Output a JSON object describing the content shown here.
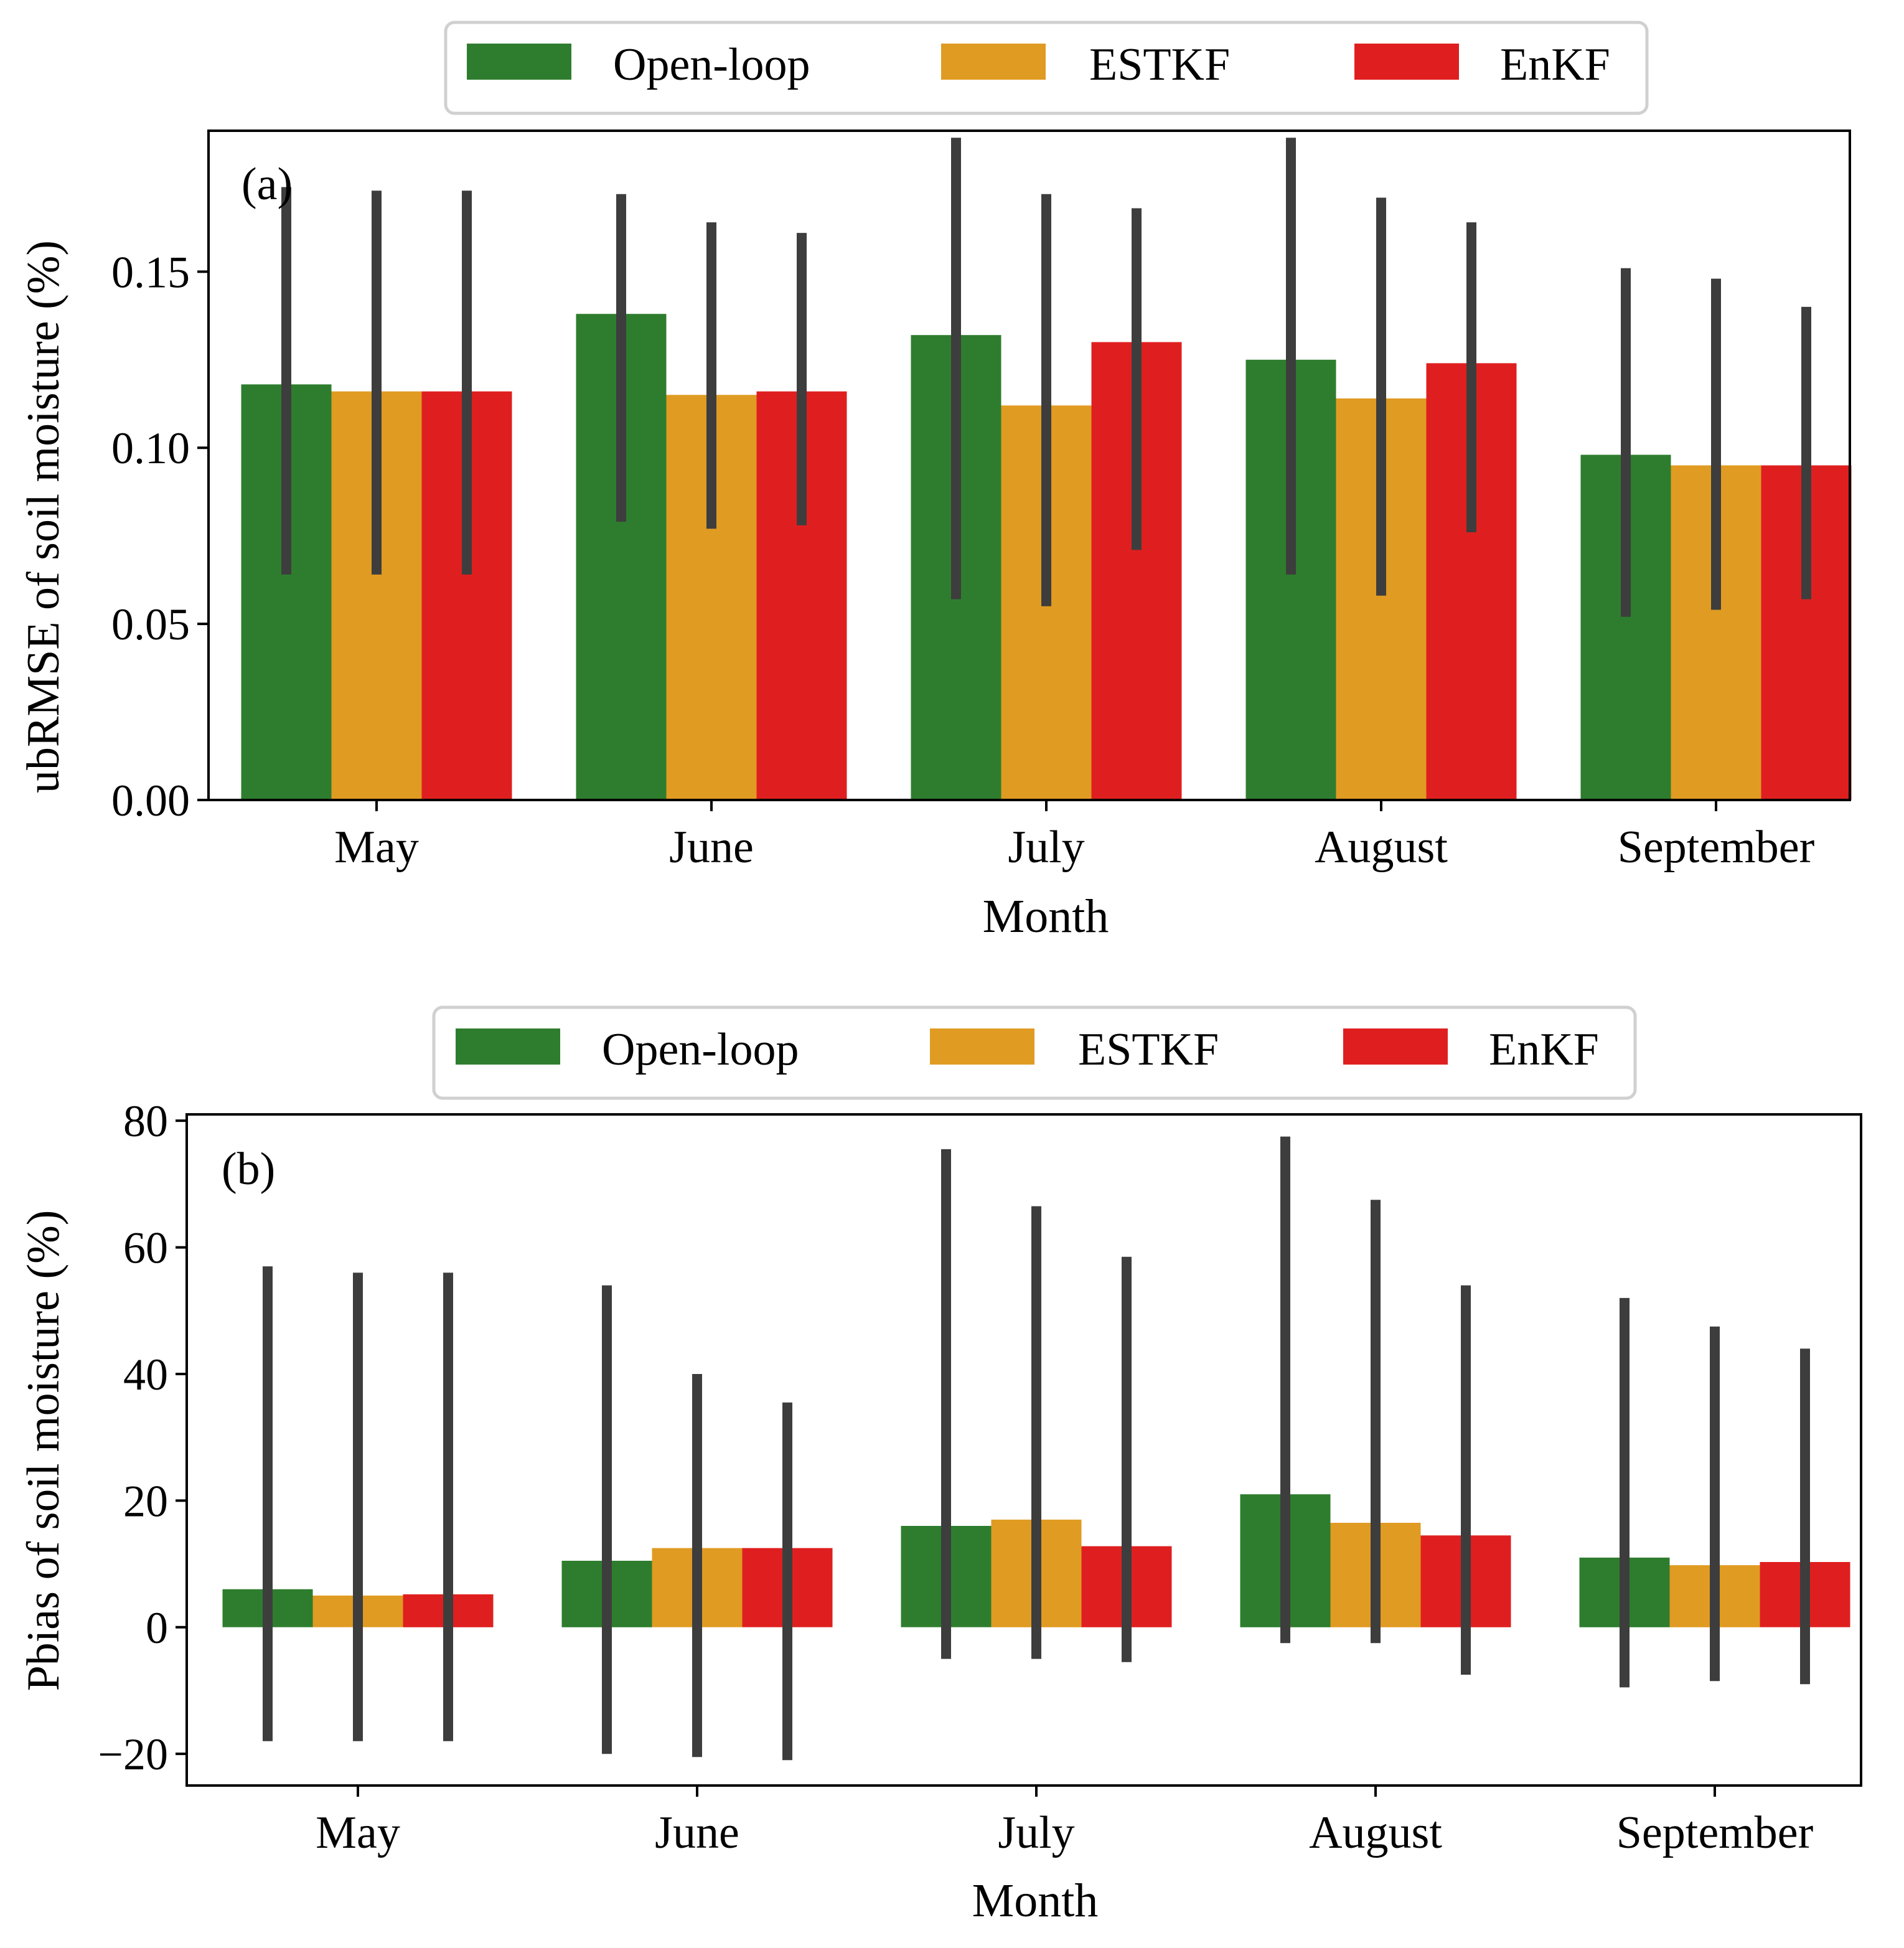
{
  "chart_data": [
    {
      "type": "bar",
      "panel_label": "(a)",
      "title": "",
      "xlabel": "Month",
      "ylabel": "ubRMSE of soil moisture (%)",
      "ylim": [
        0,
        0.19
      ],
      "yticks": [
        0.0,
        0.05,
        0.1,
        0.15
      ],
      "ytick_labels": [
        "0.00",
        "0.05",
        "0.10",
        "0.15"
      ],
      "categories": [
        "May",
        "June",
        "July",
        "August",
        "September"
      ],
      "grid": false,
      "legend": {
        "placement": "top-center-outside",
        "entries": [
          "Open-loop",
          "ESTKF",
          "EnKF"
        ]
      },
      "series": [
        {
          "name": "Open-loop",
          "color": "#2e7d2e",
          "values": [
            0.118,
            0.138,
            0.132,
            0.125,
            0.098
          ],
          "err_low": [
            0.064,
            0.079,
            0.057,
            0.064,
            0.052
          ],
          "err_high": [
            0.174,
            0.172,
            0.188,
            0.188,
            0.151
          ]
        },
        {
          "name": "ESTKF",
          "color": "#e09b22",
          "values": [
            0.116,
            0.115,
            0.112,
            0.114,
            0.095
          ],
          "err_low": [
            0.064,
            0.077,
            0.055,
            0.058,
            0.054
          ],
          "err_high": [
            0.173,
            0.164,
            0.172,
            0.171,
            0.148
          ]
        },
        {
          "name": "EnKF",
          "color": "#df1f1f",
          "values": [
            0.116,
            0.116,
            0.13,
            0.124,
            0.095
          ],
          "err_low": [
            0.064,
            0.078,
            0.071,
            0.076,
            0.057
          ],
          "err_high": [
            0.173,
            0.161,
            0.168,
            0.164,
            0.14
          ]
        }
      ]
    },
    {
      "type": "bar",
      "panel_label": "(b)",
      "title": "",
      "xlabel": "Month",
      "ylabel": "Pbias of soil moisture (%)",
      "ylim": [
        -25,
        81
      ],
      "yticks": [
        -20,
        0,
        20,
        40,
        60,
        80
      ],
      "ytick_labels": [
        "−20",
        "0",
        "20",
        "40",
        "60",
        "80"
      ],
      "categories": [
        "May",
        "June",
        "July",
        "August",
        "September"
      ],
      "grid": false,
      "legend": {
        "placement": "top-center-outside",
        "entries": [
          "Open-loop",
          "ESTKF",
          "EnKF"
        ]
      },
      "series": [
        {
          "name": "Open-loop",
          "color": "#2e7d2e",
          "values": [
            6.0,
            10.5,
            16.0,
            21.0,
            11.0
          ],
          "err_low": [
            -18.0,
            -20.0,
            -5.0,
            -2.5,
            -9.5
          ],
          "err_high": [
            57.0,
            54.0,
            75.5,
            77.5,
            52.0
          ]
        },
        {
          "name": "ESTKF",
          "color": "#e09b22",
          "values": [
            5.0,
            12.5,
            17.0,
            16.5,
            9.8
          ],
          "err_low": [
            -18.0,
            -20.5,
            -5.0,
            -2.5,
            -8.5
          ],
          "err_high": [
            56.0,
            40.0,
            66.5,
            67.5,
            47.5
          ]
        },
        {
          "name": "EnKF",
          "color": "#df1f1f",
          "values": [
            5.2,
            12.5,
            12.8,
            14.5,
            10.3
          ],
          "err_low": [
            -18.0,
            -21.0,
            -5.5,
            -7.5,
            -9.0
          ],
          "err_high": [
            56.0,
            35.5,
            58.5,
            54.0,
            44.0
          ]
        }
      ]
    }
  ]
}
